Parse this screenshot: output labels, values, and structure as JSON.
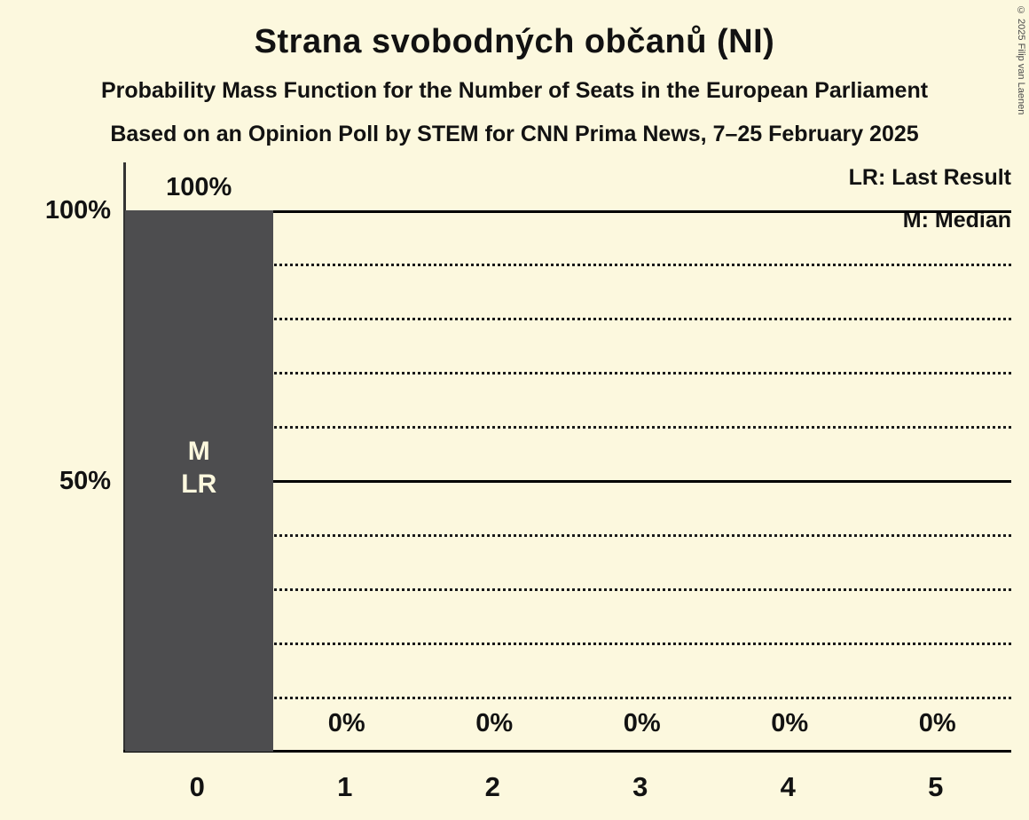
{
  "header": {
    "title": "Strana svobodných občanů (NI)",
    "subtitle": "Probability Mass Function for the Number of Seats in the European Parliament",
    "source_line": "Based on an Opinion Poll by STEM for CNN Prima News, 7–25 February 2025"
  },
  "legend": {
    "last_result": "LR: Last Result",
    "median": "M: Median"
  },
  "copyright": "© 2025 Filip van Laenen",
  "colors": {
    "background": "#FCF8DE",
    "bar": "#4D4D4F",
    "text": "#121212",
    "bar_text": "#FCF8DE",
    "axis": "#000000"
  },
  "chart_data": {
    "type": "bar",
    "title": "Strana svobodných občanů (NI)",
    "categories": [
      "0",
      "1",
      "2",
      "3",
      "4",
      "5"
    ],
    "values": [
      100,
      0,
      0,
      0,
      0,
      0
    ],
    "value_labels": [
      "100%",
      "0%",
      "0%",
      "0%",
      "0%",
      "0%"
    ],
    "ylim": [
      0,
      100
    ],
    "y_ticks": [
      {
        "value": 100,
        "label": "100%"
      },
      {
        "value": 50,
        "label": "50%"
      }
    ],
    "solid_gridlines": [
      100,
      50
    ],
    "dotted_gridlines": [
      90,
      80,
      70,
      60,
      40,
      30,
      20,
      10
    ],
    "bar_annotations": [
      {
        "category_index": 0,
        "lines": [
          "M",
          "LR"
        ]
      }
    ],
    "legend_position": "top-right",
    "grid": true
  }
}
